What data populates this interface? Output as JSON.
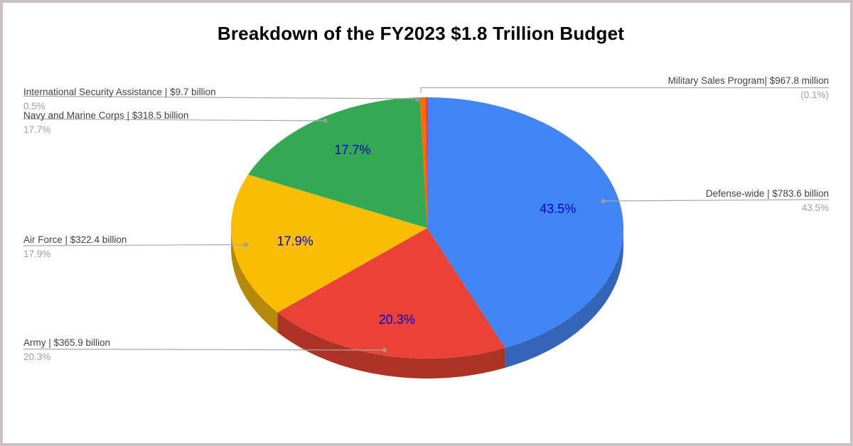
{
  "title": "Breakdown of the FY2023 $1.8 Trillion Budget",
  "chart_data": {
    "type": "pie",
    "style": "3d",
    "title": "Breakdown of the FY2023 $1.8 Trillion Budget",
    "legend_position": "none",
    "labels_mode": "outside callouts with leader lines + inside percentage labels",
    "slices": [
      {
        "label": "Defense-wide",
        "amount": "$783.6 billion",
        "pct": 43.5,
        "pct_label": "43.5%",
        "inside_label": "43.5%",
        "color": "#4285F4",
        "side_color": "#3465B8"
      },
      {
        "label": "Army",
        "amount": "$365.9 billion",
        "pct": 20.3,
        "pct_label": "20.3%",
        "inside_label": "20.3%",
        "color": "#EA4335",
        "side_color": "#AE3327"
      },
      {
        "label": "Air Force",
        "amount": "$322.4 billion",
        "pct": 17.9,
        "pct_label": "17.9%",
        "inside_label": "17.9%",
        "color": "#FBBC04",
        "side_color": "#B5870A"
      },
      {
        "label": "Navy and Marine Corps",
        "amount": "$318.5 billion",
        "pct": 17.7,
        "pct_label": "17.7%",
        "inside_label": "17.7%",
        "color": "#34A853",
        "side_color": "#267A3E"
      },
      {
        "label": "International Security Assistance",
        "amount": "$9.7 billion",
        "pct": 0.5,
        "pct_label": "0.5%",
        "inside_label": "",
        "color": "#FF6D01",
        "side_color": "#C25400"
      },
      {
        "label": "Military Sales Program",
        "amount": "$967.8 million",
        "pct": 0.1,
        "pct_label": "(0.1%)",
        "inside_label": "",
        "color": "#D93025",
        "side_color": "#A3241C"
      }
    ]
  },
  "callouts": [
    {
      "line1": "International Security Assistance | $9.7 billion",
      "line2": "0.5%"
    },
    {
      "line1": "Navy and Marine Corps | $318.5 billion",
      "line2": "17.7%"
    },
    {
      "line1": "Air Force | $322.4 billion",
      "line2": "17.9%"
    },
    {
      "line1": "Army | $365.9 billion",
      "line2": "20.3%"
    },
    {
      "line1": "Military Sales Program| $967.8 million",
      "line2": "(0.1%)"
    },
    {
      "line1": "Defense-wide | $783.6 billion",
      "line2": "43.5%"
    }
  ],
  "colors": {
    "inside_label": "#0000CC",
    "callout_text": "#424242",
    "callout_pct": "#9E9E9E",
    "leader_line": "#A6A6A6",
    "leader_dot": "#9E9E9E",
    "title": "#000000",
    "card_border": "#C9C4C3",
    "background": "#FFFFFF"
  }
}
